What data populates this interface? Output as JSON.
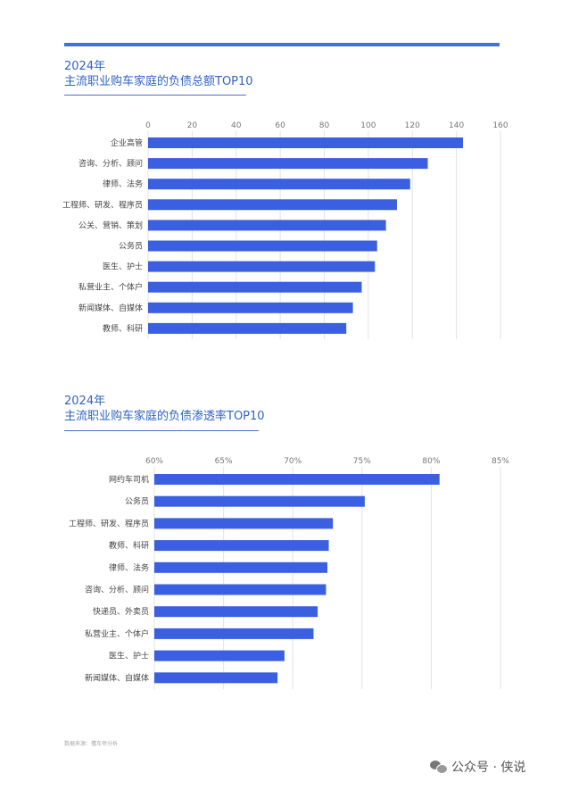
{
  "chart_data": [
    {
      "type": "bar",
      "orientation": "horizontal",
      "title_year": "2024年",
      "title": "主流职业购车家庭的负债总额TOP10",
      "categories": [
        "企业高管",
        "咨询、分析、顾问",
        "律师、法务",
        "工程师、研发、程序员",
        "公关、营销、策划",
        "公务员",
        "医生、护士",
        "私营业主、个体户",
        "新闻媒体、自媒体",
        "教师、科研"
      ],
      "values": [
        143,
        127,
        119,
        113,
        108,
        104,
        103,
        97,
        93,
        90
      ],
      "xlim": [
        0,
        160
      ],
      "ticks": [
        0,
        20,
        40,
        60,
        80,
        100,
        120,
        140,
        160
      ],
      "tick_labels": [
        "0",
        "20",
        "40",
        "60",
        "80",
        "100",
        "120",
        "140",
        "160"
      ],
      "grid": true,
      "color": "#3a5fe0"
    },
    {
      "type": "bar",
      "orientation": "horizontal",
      "title_year": "2024年",
      "title": "主流职业购车家庭的负债渗透率TOP10",
      "categories": [
        "网约车司机",
        "公务员",
        "工程师、研发、程序员",
        "教师、科研",
        "律师、法务",
        "咨询、分析、顾问",
        "快递员、外卖员",
        "私营业主、个体户",
        "医生、护士",
        "新闻媒体、自媒体"
      ],
      "values": [
        80.6,
        75.2,
        72.9,
        72.6,
        72.5,
        72.4,
        71.8,
        71.5,
        69.4,
        68.9
      ],
      "xlim": [
        60,
        85
      ],
      "ticks": [
        60,
        65,
        70,
        75,
        80,
        85
      ],
      "tick_labels": [
        "60%",
        "65%",
        "70%",
        "75%",
        "80%",
        "85%"
      ],
      "grid": true,
      "color": "#3a5fe0"
    }
  ],
  "footer": {
    "source": "数据来源：懂车帝分析"
  },
  "watermark": {
    "text": "公众号 · 侠说",
    "icon": "wechat-icon"
  }
}
